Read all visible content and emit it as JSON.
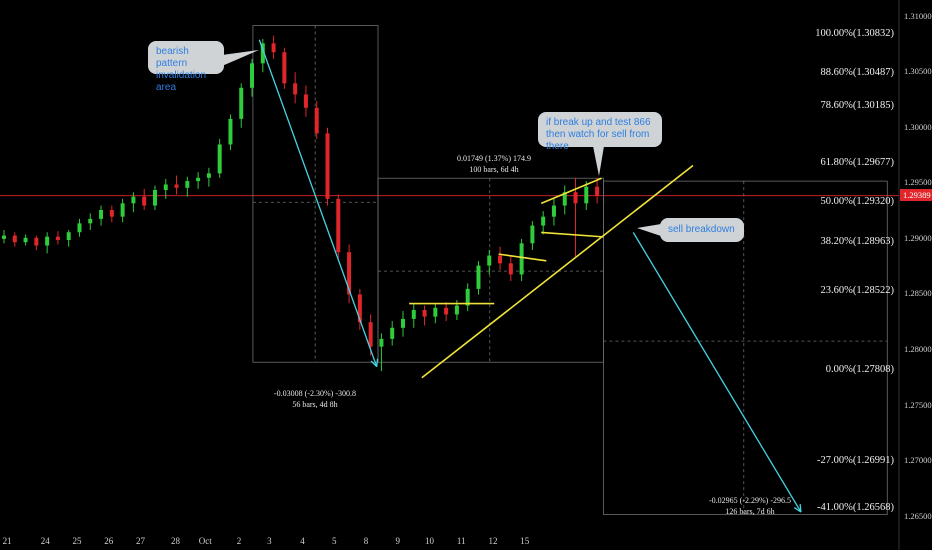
{
  "colors": {
    "background": "#000000",
    "bull": "#2fcc3c",
    "bear": "#e0262a",
    "trendline": "#f0e23a",
    "arrow": "#46d4e6",
    "box": "#6e6e6e",
    "last_price": "#e0262a",
    "callout_bg": "#cfd3d6",
    "callout_text": "#2f7fe0"
  },
  "annotations": {
    "bearish": "bearish pattern invalidation area",
    "breakup": "if break up and test 866 then watch for sell from there",
    "sell": "sell breakdown"
  },
  "measures": [
    {
      "line1": "-0.03008 (-2.30%) -300.8",
      "line2": "56 bars, 4d 8h"
    },
    {
      "line1": "0.01749 (1.37%) 174.9",
      "line2": "100 bars, 6d 4h"
    },
    {
      "line1": "-0.02965 (-2.29%) -296.5",
      "line2": "126 bars, 7d 6h"
    }
  ],
  "fib_levels": [
    {
      "label": "100.00%(1.30832)",
      "ratio": 1.0,
      "price": 1.30832
    },
    {
      "label": "88.60%(1.30487)",
      "ratio": 0.886,
      "price": 1.30487
    },
    {
      "label": "78.60%(1.30185)",
      "ratio": 0.786,
      "price": 1.30185
    },
    {
      "label": "61.80%(1.29677)",
      "ratio": 0.618,
      "price": 1.29677
    },
    {
      "label": "50.00%(1.29320)",
      "ratio": 0.5,
      "price": 1.2932
    },
    {
      "label": "38.20%(1.28963)",
      "ratio": 0.382,
      "price": 1.28963
    },
    {
      "label": "23.60%(1.28522)",
      "ratio": 0.236,
      "price": 1.28522
    },
    {
      "label": "0.00%(1.27808)",
      "ratio": 0.0,
      "price": 1.27808
    },
    {
      "label": "-27.00%(1.26991)",
      "ratio": -0.27,
      "price": 1.26991
    },
    {
      "label": "-41.00%(1.26568)",
      "ratio": -0.41,
      "price": 1.26568
    }
  ],
  "price_axis": [
    "1.31000",
    "1.30500",
    "1.30000",
    "1.29500",
    "1.29000",
    "1.28500",
    "1.28000",
    "1.27500",
    "1.27000",
    "1.26500"
  ],
  "time_axis": [
    "21",
    "24",
    "25",
    "26",
    "27",
    "28",
    "Oct",
    "2",
    "3",
    "4",
    "5",
    "8",
    "9",
    "10",
    "11",
    "12",
    "15"
  ],
  "last_price": "1.29389",
  "chart_data": {
    "type": "candlestick",
    "ylim": [
      1.2638,
      1.3115
    ],
    "y_ticks": [
      1.31,
      1.305,
      1.3,
      1.295,
      1.29,
      1.285,
      1.28,
      1.275,
      1.27,
      1.265
    ],
    "x_categories": [
      "21",
      "24",
      "25",
      "26",
      "27",
      "28",
      "Oct",
      "2",
      "3",
      "4",
      "5",
      "8",
      "9",
      "10",
      "11",
      "12",
      "15"
    ],
    "x_tick_index": [
      0.5,
      6.5,
      11.5,
      16.5,
      21.5,
      27,
      31.7,
      37,
      41.8,
      47,
      52,
      57,
      62,
      67,
      72,
      77,
      82
    ],
    "candles_estimated": [
      [
        0,
        1.29,
        1.2908,
        1.2896,
        1.2903
      ],
      [
        1,
        1.2903,
        1.2906,
        1.2893,
        1.2897
      ],
      [
        2,
        1.2897,
        1.2904,
        1.2894,
        1.2901
      ],
      [
        3,
        1.2901,
        1.2903,
        1.289,
        1.2894
      ],
      [
        4,
        1.2894,
        1.2906,
        1.2887,
        1.2902
      ],
      [
        5,
        1.2902,
        1.2907,
        1.2895,
        1.2899
      ],
      [
        6,
        1.2899,
        1.2908,
        1.2893,
        1.2906
      ],
      [
        7,
        1.2906,
        1.2918,
        1.2902,
        1.2914
      ],
      [
        8,
        1.2914,
        1.2923,
        1.2908,
        1.2918
      ],
      [
        9,
        1.2918,
        1.293,
        1.2912,
        1.2926
      ],
      [
        10,
        1.2926,
        1.293,
        1.2915,
        1.292
      ],
      [
        11,
        1.292,
        1.2936,
        1.2915,
        1.2932
      ],
      [
        12,
        1.2932,
        1.2942,
        1.2924,
        1.2938
      ],
      [
        13,
        1.2938,
        1.2945,
        1.2926,
        1.293
      ],
      [
        14,
        1.293,
        1.2948,
        1.2926,
        1.2944
      ],
      [
        15,
        1.2944,
        1.2954,
        1.2936,
        1.2949
      ],
      [
        16,
        1.2949,
        1.2957,
        1.294,
        1.2946
      ],
      [
        17,
        1.2946,
        1.2956,
        1.2938,
        1.2952
      ],
      [
        18,
        1.2952,
        1.296,
        1.2945,
        1.2955
      ],
      [
        19,
        1.2955,
        1.2964,
        1.2947,
        1.2959
      ],
      [
        20,
        1.2959,
        1.299,
        1.2955,
        1.2985
      ],
      [
        21,
        1.2985,
        1.3012,
        1.298,
        1.3008
      ],
      [
        22,
        1.3008,
        1.304,
        1.3,
        1.3036
      ],
      [
        23,
        1.3036,
        1.3062,
        1.3028,
        1.3058
      ],
      [
        24,
        1.3058,
        1.308,
        1.305,
        1.3076
      ],
      [
        25,
        1.3076,
        1.3083,
        1.3062,
        1.3068
      ],
      [
        26,
        1.3068,
        1.3072,
        1.3035,
        1.304
      ],
      [
        27,
        1.304,
        1.305,
        1.3022,
        1.303
      ],
      [
        28,
        1.303,
        1.3038,
        1.301,
        1.3018
      ],
      [
        29,
        1.3018,
        1.3024,
        1.299,
        1.2995
      ],
      [
        30,
        1.2995,
        1.3,
        1.293,
        1.2936
      ],
      [
        31,
        1.2936,
        1.294,
        1.288,
        1.2888
      ],
      [
        32,
        1.2888,
        1.2895,
        1.2842,
        1.285
      ],
      [
        33,
        1.285,
        1.2855,
        1.2818,
        1.2825
      ],
      [
        34,
        1.2825,
        1.2832,
        1.2795,
        1.2803
      ],
      [
        35,
        1.2803,
        1.2815,
        1.2781,
        1.281
      ],
      [
        36,
        1.281,
        1.2826,
        1.2804,
        1.282
      ],
      [
        37,
        1.282,
        1.2835,
        1.2812,
        1.2828
      ],
      [
        38,
        1.2828,
        1.2842,
        1.282,
        1.2836
      ],
      [
        39,
        1.2836,
        1.284,
        1.2822,
        1.283
      ],
      [
        40,
        1.283,
        1.2842,
        1.2824,
        1.2838
      ],
      [
        41,
        1.2838,
        1.2843,
        1.2826,
        1.2832
      ],
      [
        42,
        1.2832,
        1.2845,
        1.2827,
        1.284
      ],
      [
        43,
        1.284,
        1.286,
        1.2835,
        1.2855
      ],
      [
        44,
        1.2855,
        1.288,
        1.285,
        1.2876
      ],
      [
        45,
        1.2876,
        1.289,
        1.2868,
        1.2885
      ],
      [
        46,
        1.2885,
        1.2893,
        1.2872,
        1.2878
      ],
      [
        47,
        1.2878,
        1.2885,
        1.2862,
        1.2868
      ],
      [
        48,
        1.2868,
        1.29,
        1.2862,
        1.2896
      ],
      [
        49,
        1.2896,
        1.2916,
        1.289,
        1.2912
      ],
      [
        50,
        1.2912,
        1.2925,
        1.2904,
        1.292
      ],
      [
        51,
        1.292,
        1.2936,
        1.2912,
        1.293
      ],
      [
        52,
        1.293,
        1.2948,
        1.2922,
        1.2942
      ],
      [
        53,
        1.2942,
        1.2955,
        1.2884,
        1.2932
      ],
      [
        54,
        1.2932,
        1.2952,
        1.2926,
        1.2947
      ],
      [
        55,
        1.2947,
        1.2955,
        1.2932,
        1.2939
      ]
    ]
  }
}
